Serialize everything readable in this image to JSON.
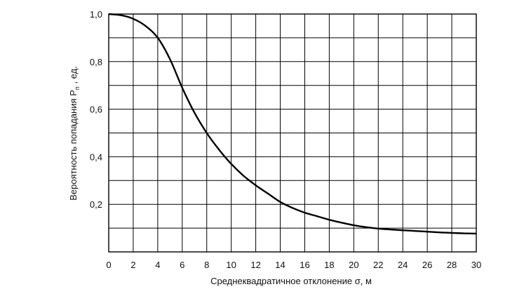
{
  "chart_data": {
    "type": "line",
    "title": "",
    "xlabel": "Среднеквадратичное отклонение σ, м",
    "ylabel_parts": {
      "main": "Вероятность попадания P",
      "subscript": "п",
      "suffix": " , ед."
    },
    "xlim": [
      0,
      30
    ],
    "ylim": [
      0,
      1.0
    ],
    "grid": true,
    "x_ticks": [
      "0",
      "2",
      "4",
      "6",
      "8",
      "10",
      "12",
      "14",
      "16",
      "18",
      "20",
      "22",
      "24",
      "26",
      "28",
      "30"
    ],
    "y_ticks": [
      "0,2",
      "0,4",
      "0,6",
      "0,8",
      "1,0"
    ],
    "series": [
      {
        "x": [
          0,
          1,
          2,
          3,
          4,
          5,
          6,
          7,
          8,
          9,
          10,
          11,
          12,
          13,
          14,
          15,
          16,
          17,
          18,
          19,
          20,
          21,
          22,
          23,
          24,
          25,
          26,
          27,
          28,
          29,
          30
        ],
        "values": [
          1.0,
          0.995,
          0.98,
          0.95,
          0.9,
          0.81,
          0.69,
          0.585,
          0.5,
          0.43,
          0.37,
          0.32,
          0.28,
          0.245,
          0.21,
          0.185,
          0.165,
          0.15,
          0.135,
          0.123,
          0.112,
          0.104,
          0.098,
          0.094,
          0.091,
          0.088,
          0.085,
          0.082,
          0.08,
          0.078,
          0.077
        ]
      }
    ],
    "line_color": "#000000"
  }
}
